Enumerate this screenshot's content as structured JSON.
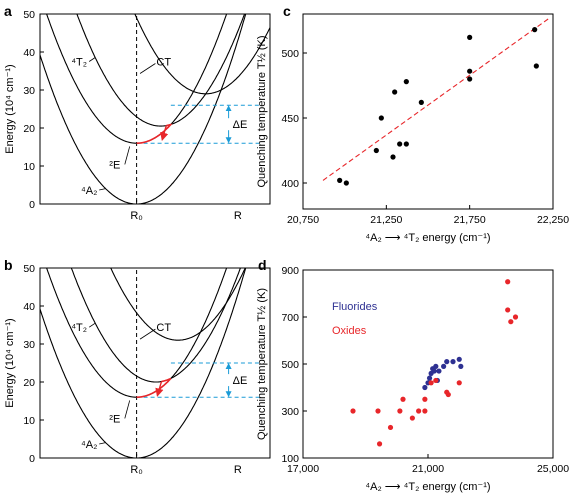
{
  "panels": {
    "a": {
      "label": "a"
    },
    "b": {
      "label": "b"
    },
    "c": {
      "label": "c"
    },
    "d": {
      "label": "d"
    }
  },
  "chart_data": [
    {
      "panel": "a",
      "type": "line",
      "ylabel": "Energy (10⁴ cm⁻¹)",
      "ylim": [
        0,
        50
      ],
      "yticks": [
        0,
        10,
        20,
        30,
        40,
        50
      ],
      "xtick_labels": [
        "R₀",
        "R"
      ],
      "state_labels": {
        "ground": "⁴A₂",
        "e": "²E",
        "t2": "⁴T₂",
        "ct": "CT"
      },
      "delta_label": "ΔE",
      "parabolas": [
        {
          "name": "⁴A₂",
          "min_energy": 0,
          "offset": 0
        },
        {
          "name": "²E",
          "min_energy": 16,
          "offset": 0
        },
        {
          "name": "⁴T₂",
          "min_energy": 20.5,
          "offset": 0.35
        },
        {
          "name": "CT",
          "min_energy": 29,
          "offset": 1.0
        }
      ],
      "levels": {
        "lower": 16,
        "upper": 26
      }
    },
    {
      "panel": "b",
      "type": "line",
      "ylabel": "Energy (10⁴ cm⁻¹)",
      "ylim": [
        0,
        50
      ],
      "yticks": [
        0,
        10,
        20,
        30,
        40,
        50
      ],
      "xtick_labels": [
        "R₀",
        "R"
      ],
      "state_labels": {
        "ground": "⁴A₂",
        "e": "²E",
        "t2": "⁴T₂",
        "ct": "CT"
      },
      "delta_label": "ΔE",
      "parabolas": [
        {
          "name": "⁴A₂",
          "min_energy": 0,
          "offset": 0
        },
        {
          "name": "²E",
          "min_energy": 16,
          "offset": 0
        },
        {
          "name": "⁴T₂",
          "min_energy": 20,
          "offset": 0.28
        },
        {
          "name": "CT",
          "min_energy": 31,
          "offset": 0.6
        }
      ],
      "levels": {
        "lower": 16,
        "upper": 25
      }
    },
    {
      "panel": "c",
      "type": "scatter",
      "xlabel": "⁴A₂ ⟶ ⁴T₂ energy (cm⁻¹)",
      "ylabel": "Quenching temperature T½ (K)",
      "xlim": [
        20750,
        22250
      ],
      "ylim": [
        380,
        530
      ],
      "xticks": [
        20750,
        21250,
        21750,
        22250
      ],
      "xtick_labels": [
        "20,750",
        "21,250",
        "21,750",
        "22,250"
      ],
      "yticks": [
        400,
        450,
        500
      ],
      "points": [
        {
          "x": 20970,
          "y": 402
        },
        {
          "x": 21010,
          "y": 400
        },
        {
          "x": 21190,
          "y": 425
        },
        {
          "x": 21220,
          "y": 450
        },
        {
          "x": 21290,
          "y": 420
        },
        {
          "x": 21300,
          "y": 470
        },
        {
          "x": 21330,
          "y": 430
        },
        {
          "x": 21370,
          "y": 430
        },
        {
          "x": 21370,
          "y": 478
        },
        {
          "x": 21460,
          "y": 462
        },
        {
          "x": 21750,
          "y": 480
        },
        {
          "x": 21750,
          "y": 486
        },
        {
          "x": 21750,
          "y": 512
        },
        {
          "x": 22140,
          "y": 518
        },
        {
          "x": 22150,
          "y": 490
        }
      ],
      "fit_line": {
        "x": [
          20870,
          22230
        ],
        "y": [
          402,
          527
        ]
      }
    },
    {
      "panel": "d",
      "type": "scatter",
      "xlabel": "⁴A₂ ⟶ ⁴T₂ energy (cm⁻¹)",
      "ylabel": "Quenching temperature T½ (K)",
      "xlim": [
        17000,
        25000
      ],
      "ylim": [
        100,
        900
      ],
      "xticks": [
        17000,
        21000,
        25000
      ],
      "xtick_labels": [
        "17,000",
        "21,000",
        "25,000"
      ],
      "yticks": [
        100,
        300,
        500,
        700,
        900
      ],
      "series": [
        {
          "name": "Fluorides",
          "color": "#2e3192",
          "points": [
            [
              20900,
              400
            ],
            [
              21000,
              420
            ],
            [
              21050,
              440
            ],
            [
              21100,
              460
            ],
            [
              21150,
              480
            ],
            [
              21200,
              470
            ],
            [
              21250,
              490
            ],
            [
              21300,
              430
            ],
            [
              21350,
              470
            ],
            [
              21500,
              490
            ],
            [
              21600,
              510
            ],
            [
              21800,
              510
            ],
            [
              22000,
              520
            ],
            [
              22050,
              490
            ]
          ]
        },
        {
          "name": "Oxides",
          "color": "#e8262a",
          "points": [
            [
              18600,
              300
            ],
            [
              19400,
              300
            ],
            [
              19450,
              160
            ],
            [
              19800,
              230
            ],
            [
              20100,
              300
            ],
            [
              20200,
              350
            ],
            [
              20500,
              270
            ],
            [
              20700,
              300
            ],
            [
              20900,
              300
            ],
            [
              20900,
              350
            ],
            [
              21100,
              420
            ],
            [
              21250,
              430
            ],
            [
              21600,
              380
            ],
            [
              21650,
              370
            ],
            [
              22000,
              420
            ],
            [
              23550,
              850
            ],
            [
              23550,
              730
            ],
            [
              23650,
              680
            ],
            [
              23800,
              700
            ]
          ]
        }
      ]
    }
  ]
}
